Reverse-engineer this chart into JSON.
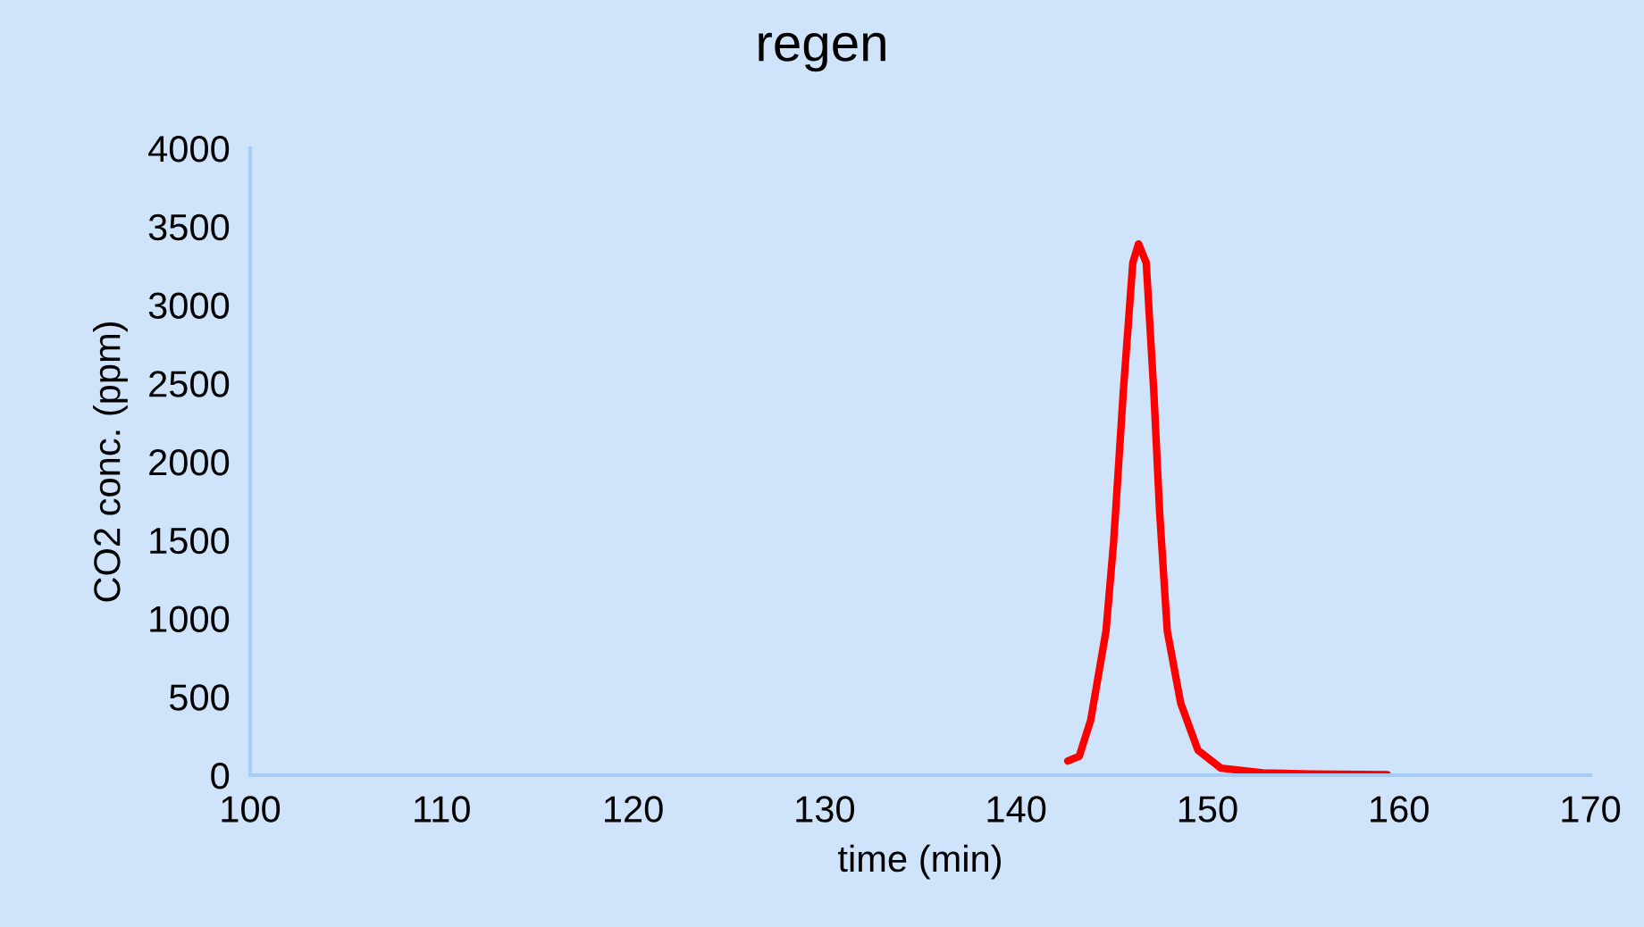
{
  "chart_data": {
    "type": "line",
    "title": "regen",
    "xlabel": "time (min)",
    "ylabel": "CO2 conc. (ppm)",
    "xlim": [
      100,
      170
    ],
    "xticks": [
      100,
      110,
      120,
      130,
      140,
      150,
      160,
      170
    ],
    "ylim": [
      0,
      4000
    ],
    "yticks": [
      0,
      500,
      1000,
      1500,
      2000,
      2500,
      3000,
      3500,
      4000
    ],
    "grid": false,
    "legend": false,
    "marker": "none",
    "line_style": "solid",
    "series": [
      {
        "color": "#ff0000",
        "x": [
          142.7,
          143.3,
          143.9,
          144.7,
          145.1,
          145.6,
          146.1,
          146.4,
          146.8,
          147.2,
          147.5,
          147.9,
          148.6,
          149.5,
          150.7,
          152.9,
          155.4,
          159.4
        ],
        "values": [
          90,
          120,
          350,
          920,
          1490,
          2440,
          3270,
          3390,
          3270,
          2440,
          1680,
          920,
          460,
          160,
          45,
          15,
          8,
          3
        ]
      }
    ]
  }
}
